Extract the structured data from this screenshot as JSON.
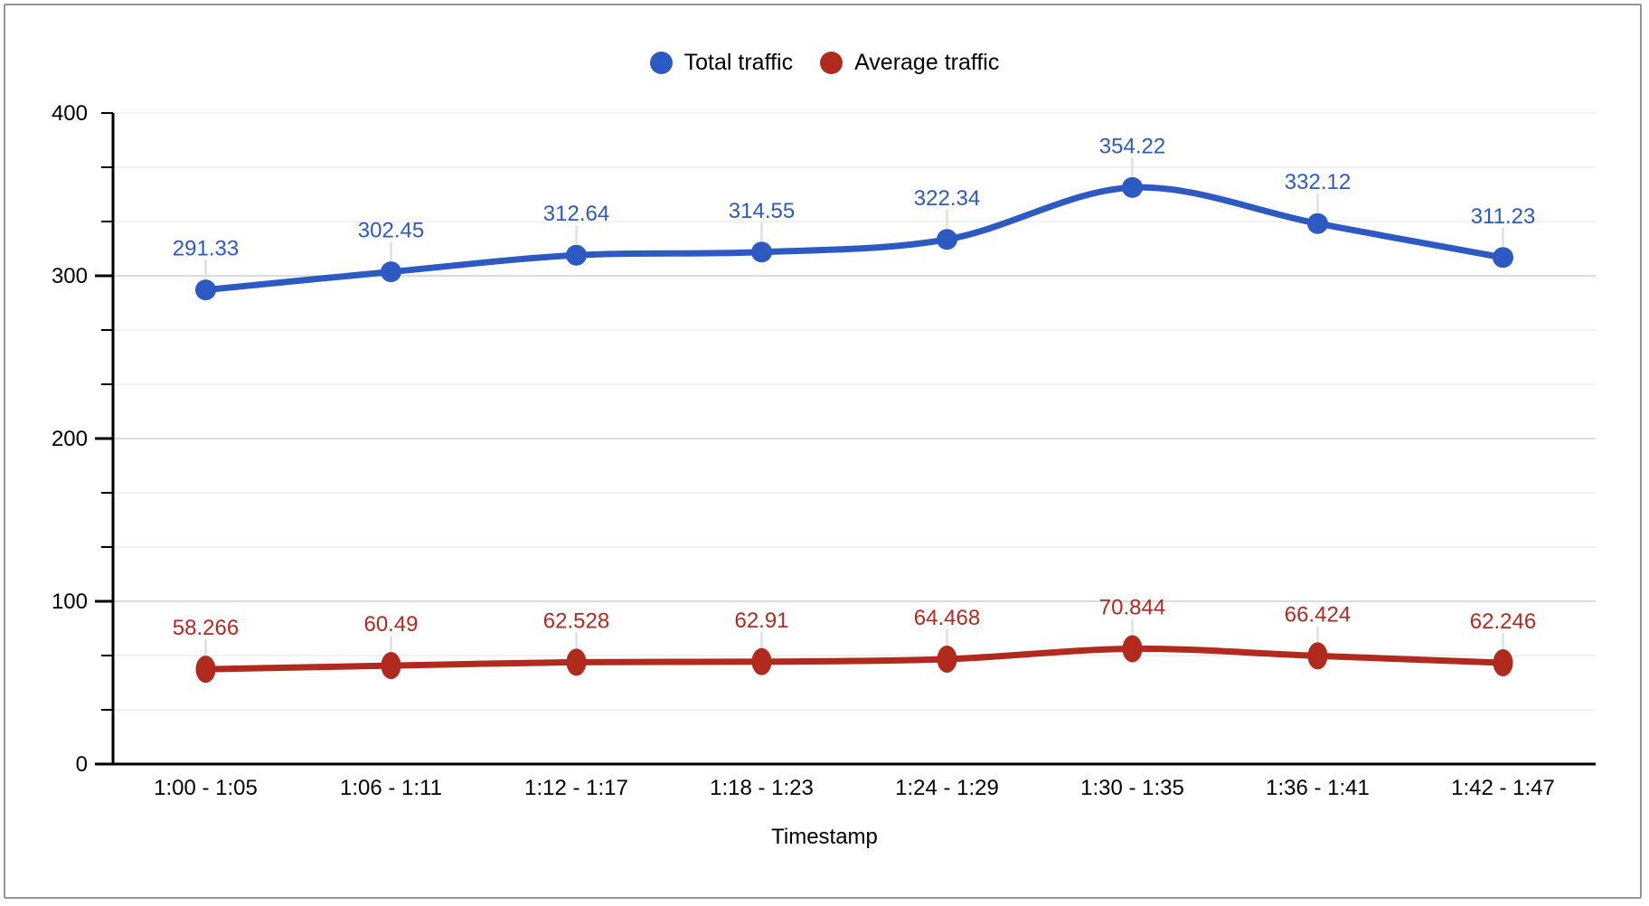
{
  "chart_data": {
    "type": "line",
    "smooth": true,
    "title": "",
    "xlabel": "Timestamp",
    "ylabel": "",
    "ylim": [
      0,
      400
    ],
    "y_major_step": 100,
    "y_minor_divisions": 3,
    "y_tick_labels": [
      "0",
      "100",
      "200",
      "300",
      "400"
    ],
    "grid": true,
    "legend_position": "top",
    "categories": [
      "1:00 - 1:05",
      "1:06 - 1:11",
      "1:12 - 1:17",
      "1:18 - 1:23",
      "1:24 - 1:29",
      "1:30 - 1:35",
      "1:36 - 1:41",
      "1:42 - 1:47"
    ],
    "series": [
      {
        "name": "Total traffic",
        "color": "#2C59C2",
        "marker": "circle",
        "values": [
          291.33,
          302.45,
          312.64,
          314.55,
          322.34,
          354.22,
          332.12,
          311.23
        ],
        "labels": [
          "291.33",
          "302.45",
          "312.64",
          "314.55",
          "322.34",
          "354.22",
          "332.12",
          "311.23"
        ]
      },
      {
        "name": "Average traffic",
        "color": "#B02A1E",
        "marker": "ellipse",
        "values": [
          58.266,
          60.49,
          62.528,
          62.91,
          64.468,
          70.844,
          66.424,
          62.246
        ],
        "labels": [
          "58.266",
          "60.49",
          "62.528",
          "62.91",
          "64.468",
          "70.844",
          "66.424",
          "62.246"
        ]
      }
    ]
  },
  "colors": {
    "background": "#FFFFFF",
    "border": "#969696",
    "axis": "#000000",
    "text": "#000000",
    "grid_major": "#DCDCDC",
    "grid_minor": "#F1F1F1",
    "leader": "#E0E0E0"
  }
}
